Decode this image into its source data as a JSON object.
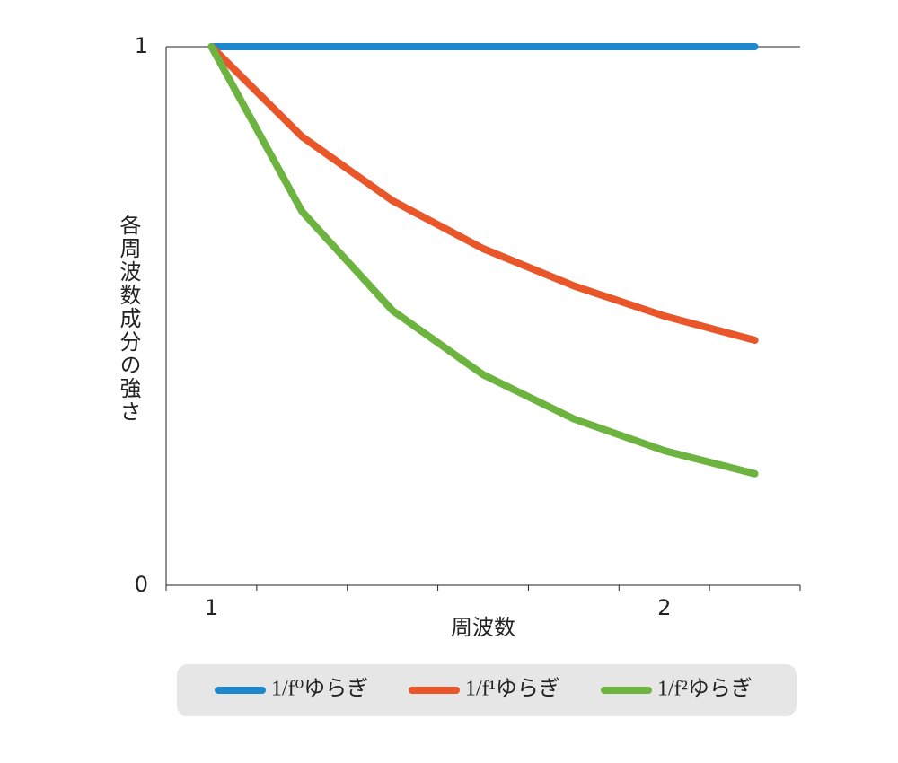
{
  "chart_data": {
    "type": "line",
    "x_label": "周波数",
    "y_label": "各周波数成分の強さ",
    "x": [
      1,
      1.2,
      1.4,
      1.6,
      1.8,
      2.0,
      2.2
    ],
    "series": [
      {
        "name": "1/f⁰ゆらぎ",
        "color": "#1e88cc",
        "values": [
          1,
          1,
          1,
          1,
          1,
          1,
          1
        ]
      },
      {
        "name": "1/f¹ゆらぎ",
        "color": "#e8562a",
        "values": [
          1,
          0.833,
          0.714,
          0.625,
          0.556,
          0.5,
          0.455
        ]
      },
      {
        "name": "1/f²ゆらぎ",
        "color": "#6db33f",
        "values": [
          1,
          0.694,
          0.51,
          0.391,
          0.309,
          0.25,
          0.207
        ]
      }
    ],
    "xlim": [
      0.9,
      2.3
    ],
    "xticks": [
      1,
      2
    ],
    "xminorticks": [
      1.1,
      1.3,
      1.5,
      1.7,
      1.9,
      2.1
    ],
    "ylim": [
      0,
      1
    ],
    "yticks": [
      0,
      1
    ],
    "legend": "bottom"
  }
}
